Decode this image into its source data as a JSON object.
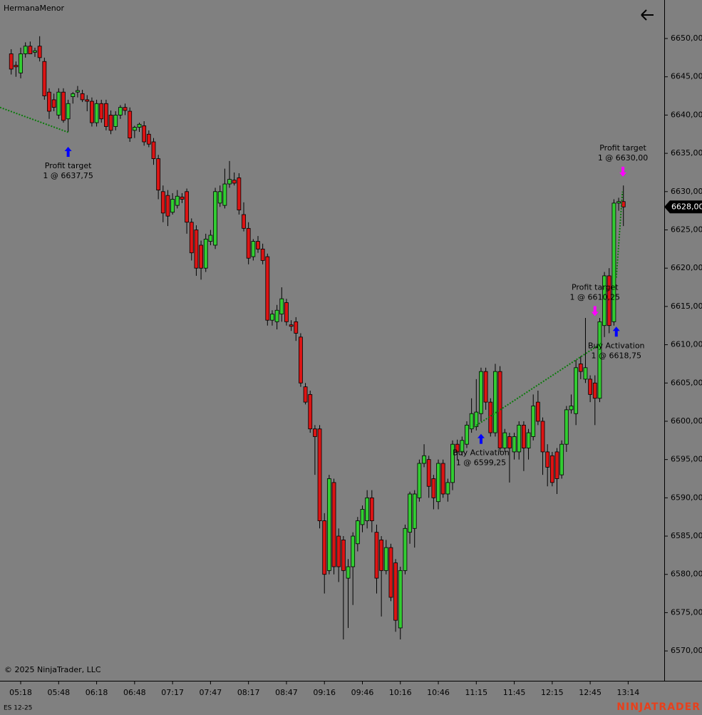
{
  "header": {
    "title": "HermanaMenor"
  },
  "footer": {
    "copyright": "© 2025 NinjaTrader, LLC",
    "instrument": "ES 12-25",
    "brand": "NINJATRADER"
  },
  "chart_data": {
    "type": "candlestick",
    "xlim": [
      -2.36,
      137.6
    ],
    "ylim": [
      6566.1,
      6655.03
    ],
    "xticks": [
      {
        "value": 2,
        "label": "05:18"
      },
      {
        "value": 10,
        "label": "05:48"
      },
      {
        "value": 18,
        "label": "06:18"
      },
      {
        "value": 26,
        "label": "06:48"
      },
      {
        "value": 34,
        "label": "07:17"
      },
      {
        "value": 42,
        "label": "07:47"
      },
      {
        "value": 50,
        "label": "08:17"
      },
      {
        "value": 58,
        "label": "08:47"
      },
      {
        "value": 66,
        "label": "09:16"
      },
      {
        "value": 74,
        "label": "09:46"
      },
      {
        "value": 82,
        "label": "10:16"
      },
      {
        "value": 90,
        "label": "10:46"
      },
      {
        "value": 98,
        "label": "11:15"
      },
      {
        "value": 106,
        "label": "11:45"
      },
      {
        "value": 114,
        "label": "12:15"
      },
      {
        "value": 122,
        "label": "12:45"
      },
      {
        "value": 130,
        "label": "13:14"
      }
    ],
    "yticks": [
      {
        "value": 6570,
        "label": "6570,00"
      },
      {
        "value": 6575,
        "label": "6575,00"
      },
      {
        "value": 6580,
        "label": "6580,00"
      },
      {
        "value": 6585,
        "label": "6585,00"
      },
      {
        "value": 6590,
        "label": "6590,00"
      },
      {
        "value": 6595,
        "label": "6595,00"
      },
      {
        "value": 6600,
        "label": "6600,00"
      },
      {
        "value": 6605,
        "label": "6605,00"
      },
      {
        "value": 6610,
        "label": "6610,00"
      },
      {
        "value": 6615,
        "label": "6615,00"
      },
      {
        "value": 6620,
        "label": "6620,00"
      },
      {
        "value": 6625,
        "label": "6625,00"
      },
      {
        "value": 6630,
        "label": "6630,00"
      },
      {
        "value": 6635,
        "label": "6635,00"
      },
      {
        "value": 6640,
        "label": "6640,00"
      },
      {
        "value": 6645,
        "label": "6645,00"
      },
      {
        "value": 6650,
        "label": "6650,00"
      }
    ],
    "up_color": "#32cd32",
    "down_color": "#dc1414",
    "last_price": {
      "value": 6628,
      "label": "6628,00"
    },
    "ohlc": [
      [
        6648,
        6648.6,
        6645.3,
        6646
      ],
      [
        6646.5,
        6647,
        6645,
        6646.3
      ],
      [
        6645.5,
        6648.8,
        6644.8,
        6648
      ],
      [
        6648,
        6649.5,
        6647.5,
        6649
      ],
      [
        6649,
        6649.6,
        6648,
        6648
      ],
      [
        6648.2,
        6648.8,
        6647.6,
        6648.4
      ],
      [
        6649,
        6650.3,
        6647,
        6647.5
      ],
      [
        6647,
        6647.5,
        6642,
        6642.5
      ],
      [
        6643,
        6643.5,
        6639.5,
        6640.5
      ],
      [
        6642,
        6642.8,
        6640.5,
        6641
      ],
      [
        6640,
        6643.5,
        6639.5,
        6643
      ],
      [
        6643,
        6643.5,
        6639,
        6639.3
      ],
      [
        6639.5,
        6642,
        6637.8,
        6641.5
      ],
      [
        6642.4,
        6643,
        6641.5,
        6642.8
      ],
      [
        6643,
        6643.8,
        6642.3,
        6643.2
      ],
      [
        6642.8,
        6643.3,
        6641.7,
        6642
      ],
      [
        6642,
        6642.6,
        6640.5,
        6641.8
      ],
      [
        6641.8,
        6642.3,
        6638.5,
        6639
      ],
      [
        6639,
        6642,
        6638.5,
        6641.5
      ],
      [
        6641.5,
        6642,
        6639,
        6639.5
      ],
      [
        6641.5,
        6642,
        6638,
        6638.5
      ],
      [
        6640,
        6640.6,
        6637.5,
        6638
      ],
      [
        6638.5,
        6640.5,
        6638,
        6640
      ],
      [
        6640,
        6641.3,
        6639.5,
        6641
      ],
      [
        6641,
        6641.5,
        6640,
        6640.6
      ],
      [
        6640.5,
        6641,
        6636.5,
        6637
      ],
      [
        6638,
        6638.6,
        6637,
        6638.4
      ],
      [
        6638.4,
        6639,
        6637.8,
        6638.8
      ],
      [
        6638.6,
        6639.2,
        6636,
        6636.5
      ],
      [
        6637.5,
        6638,
        6635.8,
        6636.2
      ],
      [
        6636.5,
        6637,
        6633.5,
        6634.3
      ],
      [
        6634.3,
        6634.8,
        6629,
        6630.2
      ],
      [
        6630,
        6630.8,
        6626,
        6627.2
      ],
      [
        6629.5,
        6630.2,
        6625.5,
        6626.8
      ],
      [
        6627.3,
        6629.8,
        6627,
        6629
      ],
      [
        6628.2,
        6630.2,
        6627.8,
        6629.4
      ],
      [
        6629.3,
        6629.8,
        6628.5,
        6629
      ],
      [
        6630,
        6630.4,
        6624.5,
        6626
      ],
      [
        6626,
        6626.5,
        6621,
        6622
      ],
      [
        6625,
        6625.6,
        6619,
        6620
      ],
      [
        6623,
        6623.6,
        6618.5,
        6620
      ],
      [
        6620,
        6624.5,
        6619.5,
        6623.8
      ],
      [
        6623.5,
        6625,
        6623,
        6624.3
      ],
      [
        6623,
        6630.5,
        6622.5,
        6630
      ],
      [
        6628.5,
        6630.8,
        6628,
        6630
      ],
      [
        6628.2,
        6633,
        6627.8,
        6631
      ],
      [
        6631,
        6634,
        6630.5,
        6631.6
      ],
      [
        6631.5,
        6632.5,
        6630.8,
        6631.1
      ],
      [
        6631.8,
        6632.4,
        6627,
        6627.6
      ],
      [
        6627,
        6628.6,
        6624.8,
        6625.2
      ],
      [
        6625.2,
        6626,
        6620.5,
        6621.3
      ],
      [
        6621.5,
        6623.8,
        6621,
        6623.5
      ],
      [
        6623.5,
        6624.2,
        6622,
        6622.5
      ],
      [
        6622.5,
        6623.2,
        6620.5,
        6621
      ],
      [
        6621.5,
        6621.9,
        6612.5,
        6613.2
      ],
      [
        6613.2,
        6614.5,
        6612.5,
        6614
      ],
      [
        6613,
        6615.2,
        6612,
        6614.5
      ],
      [
        6614,
        6617.5,
        6613,
        6616
      ],
      [
        6615.5,
        6616,
        6612.5,
        6613
      ],
      [
        6612.6,
        6613.2,
        6611.8,
        6612.4
      ],
      [
        6613,
        6613.6,
        6610.5,
        6611.5
      ],
      [
        6611,
        6611.5,
        6604.5,
        6605
      ],
      [
        6604.5,
        6605,
        6602.2,
        6602.5
      ],
      [
        6603.5,
        6604,
        6598.5,
        6599
      ],
      [
        6599,
        6599.5,
        6593,
        6598
      ],
      [
        6599,
        6599.5,
        6586,
        6587
      ],
      [
        6587,
        6588,
        6577.5,
        6580
      ],
      [
        6580.5,
        6593,
        6580,
        6592.5
      ],
      [
        6592,
        6592.5,
        6580,
        6581
      ],
      [
        6585,
        6586,
        6579,
        6581
      ],
      [
        6584.5,
        6585,
        6571.5,
        6580.5
      ],
      [
        6579.5,
        6582,
        6573,
        6581
      ],
      [
        6581,
        6585.5,
        6576,
        6585
      ],
      [
        6584,
        6587.5,
        6583,
        6587
      ],
      [
        6586.5,
        6589,
        6585.5,
        6588.5
      ],
      [
        6587,
        6591,
        6586,
        6590
      ],
      [
        6590,
        6591,
        6585.5,
        6587
      ],
      [
        6585.5,
        6586.5,
        6577.5,
        6579.5
      ],
      [
        6584.5,
        6585,
        6574.5,
        6580.5
      ],
      [
        6580.5,
        6584.5,
        6580,
        6583.5
      ],
      [
        6583.5,
        6584,
        6576.5,
        6577
      ],
      [
        6581.5,
        6582,
        6572.5,
        6574
      ],
      [
        6573,
        6581,
        6571.5,
        6580.5
      ],
      [
        6580.5,
        6586.5,
        6580,
        6586
      ],
      [
        6585.5,
        6590.8,
        6584,
        6590.5
      ],
      [
        6586,
        6591,
        6583.5,
        6590.5
      ],
      [
        6590,
        6595,
        6589.5,
        6594.5
      ],
      [
        6594.5,
        6597,
        6594,
        6595.5
      ],
      [
        6595,
        6595.5,
        6590,
        6591.5
      ],
      [
        6592.5,
        6593,
        6588.5,
        6590
      ],
      [
        6589.5,
        6595,
        6588.5,
        6594.5
      ],
      [
        6594.5,
        6595,
        6590,
        6590.5
      ],
      [
        6590.5,
        6592.5,
        6589.5,
        6592
      ],
      [
        6592,
        6597.5,
        6591,
        6597
      ],
      [
        6597,
        6597.6,
        6595,
        6596
      ],
      [
        6596,
        6598,
        6595.5,
        6597.5
      ],
      [
        6597,
        6600,
        6596.5,
        6599.5
      ],
      [
        6599,
        6603,
        6598.5,
        6601
      ],
      [
        6599.3,
        6605.5,
        6598.8,
        6601.2
      ],
      [
        6601,
        6607,
        6600,
        6606.5
      ],
      [
        6606.5,
        6607,
        6601.5,
        6602.5
      ],
      [
        6602.5,
        6603,
        6598,
        6598.5
      ],
      [
        6598.5,
        6607.5,
        6598,
        6606.5
      ],
      [
        6606.5,
        6607.2,
        6596,
        6596.5
      ],
      [
        6596.5,
        6599,
        6596,
        6598.5
      ],
      [
        6598,
        6598.5,
        6592,
        6596.5
      ],
      [
        6596,
        6598.5,
        6595,
        6598
      ],
      [
        6596,
        6600,
        6595,
        6599.5
      ],
      [
        6599.5,
        6600,
        6593.5,
        6596.5
      ],
      [
        6596.5,
        6599,
        6595,
        6598.5
      ],
      [
        6598,
        6603.5,
        6597.5,
        6602
      ],
      [
        6602.5,
        6604,
        6599.5,
        6600
      ],
      [
        6600,
        6600.5,
        6593,
        6596
      ],
      [
        6596,
        6597,
        6591.5,
        6594
      ],
      [
        6595.5,
        6596,
        6591.5,
        6592
      ],
      [
        6596,
        6596.5,
        6590.5,
        6592.5
      ],
      [
        6593,
        6597.5,
        6592.5,
        6597
      ],
      [
        6597,
        6602,
        6596,
        6601.5
      ],
      [
        6601.5,
        6603.5,
        6601,
        6602
      ],
      [
        6601,
        6608,
        6599.5,
        6607
      ],
      [
        6607.5,
        6608.5,
        6605.5,
        6606.5
      ],
      [
        6605.5,
        6613.5,
        6605,
        6607
      ],
      [
        6605.5,
        6606,
        6602.5,
        6603.5
      ],
      [
        6605,
        6606,
        6599.5,
        6603
      ],
      [
        6603,
        6613.5,
        6602.5,
        6613
      ],
      [
        6612.5,
        6619.5,
        6611,
        6619
      ],
      [
        6619,
        6620,
        6611.5,
        6612.5
      ],
      [
        6613,
        6629,
        6612.5,
        6628.5
      ],
      [
        6628.5,
        6629.2,
        6627.5,
        6628.7
      ],
      [
        6628.7,
        6630.8,
        6625.5,
        6628
      ]
    ],
    "trades": [
      {
        "x": [
          -2.36,
          12
        ],
        "y": [
          6641,
          6637.75
        ]
      },
      {
        "x": [
          97.5,
          124.5
        ],
        "y": [
          6599.25,
          6610.25
        ]
      },
      {
        "x": [
          127.5,
          128.8
        ],
        "y": [
          6618.75,
          6630
        ]
      }
    ],
    "annotations": [
      {
        "label": "Profit target",
        "detail": "1 @ 6637,75",
        "x": 12,
        "y": 6635.2,
        "direction": "up",
        "color": "#0000ff"
      },
      {
        "label": "Buy Activation",
        "detail": "1 @ 6599,25",
        "x": 99,
        "y": 6597.7,
        "direction": "up",
        "color": "#0000ff"
      },
      {
        "label": "Profit target",
        "detail": "1 @ 6610,25",
        "x": 123,
        "y": 6614.4,
        "direction": "down",
        "color": "#ff00ff"
      },
      {
        "label": "Buy Activation",
        "detail": "1 @ 6618,75",
        "x": 127.5,
        "y": 6611.7,
        "direction": "up",
        "color": "#0000ff"
      },
      {
        "label": "Profit target",
        "detail": "1 @ 6630,00",
        "x": 128.9,
        "y": 6632.6,
        "direction": "down",
        "color": "#ff00ff"
      }
    ]
  }
}
